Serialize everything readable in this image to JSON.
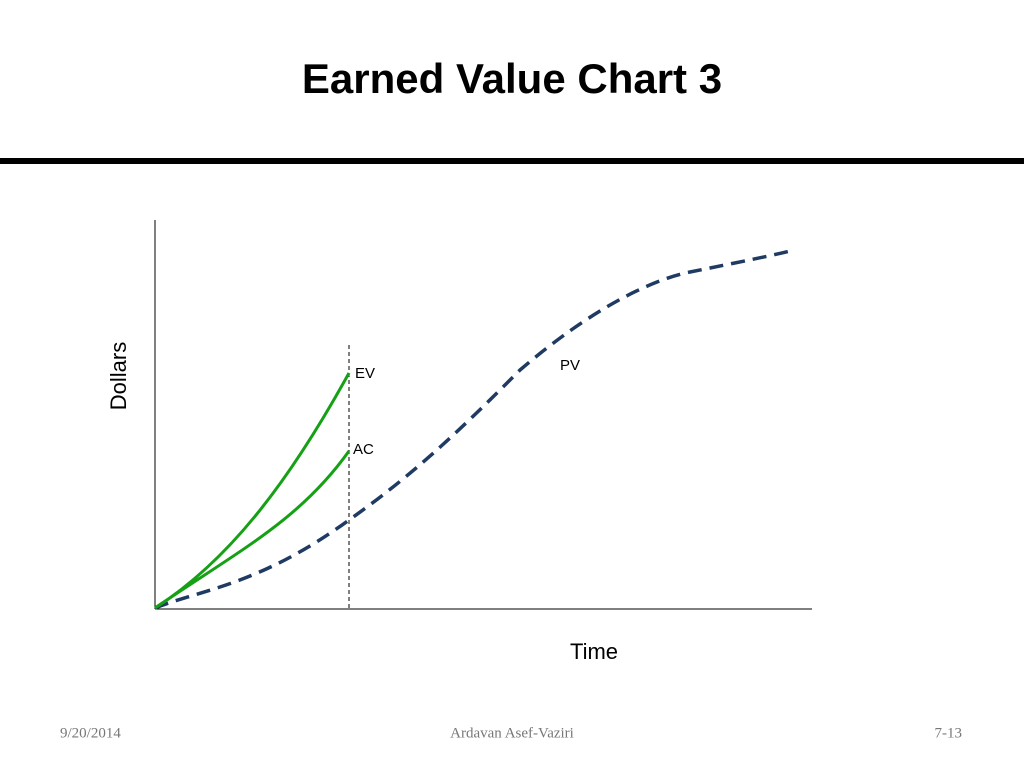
{
  "header": {
    "title": "Earned Value Chart 3"
  },
  "chart": {
    "y_label": "Dollars",
    "x_label": "Time",
    "curve_labels": [
      "EV",
      "AC",
      "PV"
    ]
  },
  "footer": {
    "date": "9/20/2014",
    "author": "Ardavan Asef-Vaziri",
    "page": "7-13"
  }
}
